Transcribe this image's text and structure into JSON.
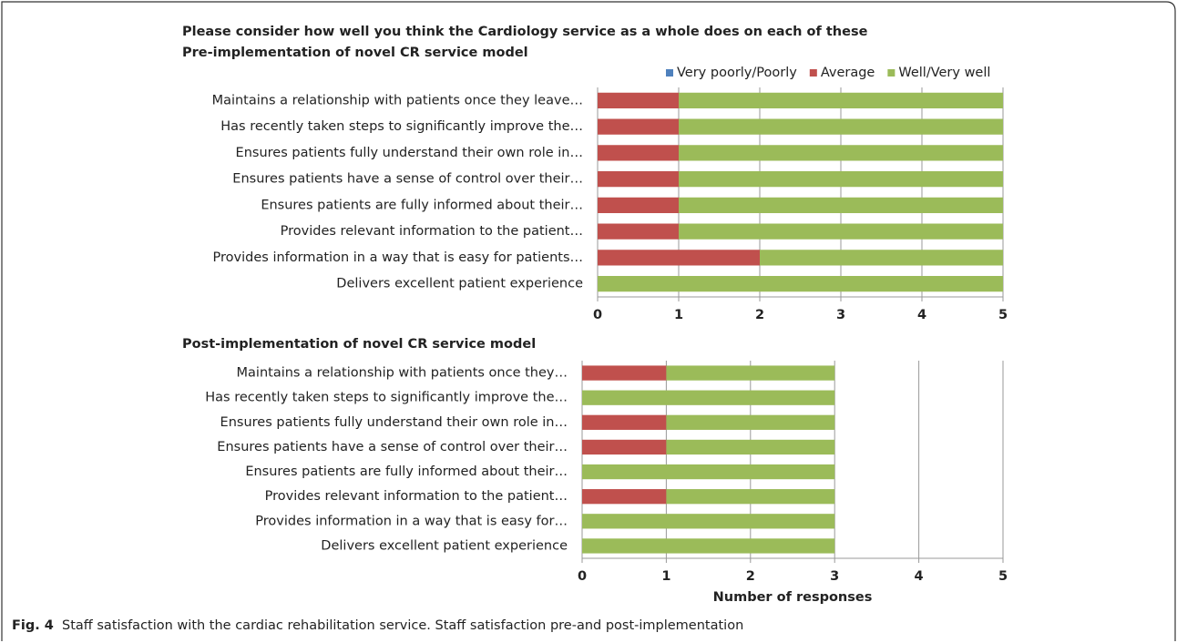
{
  "chart_data": [
    {
      "type": "stacked_barh",
      "title": "Please consider how well you think the Cardiology service as a whole does on each of these",
      "subtitle": "Pre-implementation of novel CR service model",
      "categories": [
        "Maintains a relationship with patients once they leave…",
        "Has recently taken steps to significantly improve the…",
        "Ensures patients fully understand their own role in…",
        "Ensures patients have a sense of control over their…",
        "Ensures patients are fully informed about their…",
        "Provides relevant information to the patient…",
        "Provides information in a way that is easy for patients…",
        "Delivers excellent patient experience"
      ],
      "series": [
        {
          "name": "Very poorly/Poorly",
          "color": "#4f81bd",
          "values": [
            0,
            0,
            0,
            0,
            0,
            0,
            0,
            0
          ]
        },
        {
          "name": "Average",
          "color": "#c0504d",
          "values": [
            1,
            1,
            1,
            1,
            1,
            1,
            2,
            0
          ]
        },
        {
          "name": "Well/Very well",
          "color": "#9bbb59",
          "values": [
            4,
            4,
            4,
            4,
            4,
            4,
            3,
            5
          ]
        }
      ],
      "xlim": [
        0,
        5
      ],
      "xticks": [
        0,
        1,
        2,
        3,
        4,
        5
      ],
      "grid": true,
      "legend": "top"
    },
    {
      "type": "stacked_barh",
      "title": "Post-implementation of novel CR service model",
      "xlabel": "Number of responses",
      "categories": [
        "Maintains a relationship with patients once they…",
        "Has recently taken steps to significantly improve the…",
        "Ensures patients fully understand their own role in…",
        "Ensures patients have a sense of control over their…",
        "Ensures patients are fully informed about their…",
        "Provides relevant information to the patient…",
        "Provides information in a way that is easy for…",
        "Delivers excellent patient experience"
      ],
      "series": [
        {
          "name": "Very poorly/Poorly",
          "color": "#4f81bd",
          "values": [
            0,
            0,
            0,
            0,
            0,
            0,
            0,
            0
          ]
        },
        {
          "name": "Average",
          "color": "#c0504d",
          "values": [
            1,
            0,
            1,
            1,
            0,
            1,
            0,
            0
          ]
        },
        {
          "name": "Well/Very well",
          "color": "#9bbb59",
          "values": [
            2,
            3,
            2,
            2,
            3,
            2,
            3,
            3
          ]
        }
      ],
      "xlim": [
        0,
        5
      ],
      "xticks": [
        0,
        1,
        2,
        3,
        4,
        5
      ],
      "grid": true
    }
  ],
  "caption": {
    "label": "Fig. 4",
    "text": "Staff satisfaction with the cardiac rehabilitation service. Staff satisfaction pre-and post-implementation"
  }
}
